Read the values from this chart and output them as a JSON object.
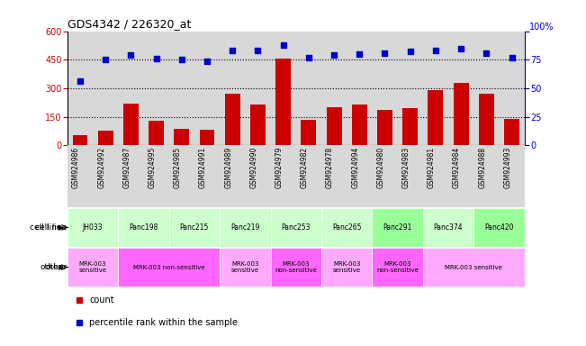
{
  "title": "GDS4342 / 226320_at",
  "gsm_ids": [
    "GSM924986",
    "GSM924992",
    "GSM924987",
    "GSM924995",
    "GSM924985",
    "GSM924991",
    "GSM924989",
    "GSM924990",
    "GSM924979",
    "GSM924982",
    "GSM924978",
    "GSM924994",
    "GSM924980",
    "GSM924983",
    "GSM924981",
    "GSM924984",
    "GSM924988",
    "GSM924993"
  ],
  "counts": [
    55,
    75,
    220,
    130,
    85,
    80,
    270,
    215,
    455,
    135,
    200,
    215,
    185,
    195,
    290,
    330,
    270,
    140
  ],
  "percentile_ranks": [
    56,
    75,
    79,
    76,
    75,
    74,
    83,
    83,
    88,
    77,
    79,
    80,
    81,
    82,
    83,
    85,
    81,
    77
  ],
  "cell_line_groups": [
    {
      "label": "JH033",
      "start": 0,
      "end": 2,
      "color": "#ccffcc"
    },
    {
      "label": "Panc198",
      "start": 2,
      "end": 4,
      "color": "#ccffcc"
    },
    {
      "label": "Panc215",
      "start": 4,
      "end": 6,
      "color": "#ccffcc"
    },
    {
      "label": "Panc219",
      "start": 6,
      "end": 8,
      "color": "#ccffcc"
    },
    {
      "label": "Panc253",
      "start": 8,
      "end": 10,
      "color": "#ccffcc"
    },
    {
      "label": "Panc265",
      "start": 10,
      "end": 12,
      "color": "#ccffcc"
    },
    {
      "label": "Panc291",
      "start": 12,
      "end": 14,
      "color": "#99ff99"
    },
    {
      "label": "Panc374",
      "start": 14,
      "end": 16,
      "color": "#ccffcc"
    },
    {
      "label": "Panc420",
      "start": 16,
      "end": 18,
      "color": "#99ff99"
    }
  ],
  "other_groups": [
    {
      "label": "MRK-003\nsensitive",
      "start": 0,
      "end": 2,
      "color": "#ffaaff"
    },
    {
      "label": "MRK-003 non-sensitive",
      "start": 2,
      "end": 6,
      "color": "#ff66ff"
    },
    {
      "label": "MRK-003\nsensitive",
      "start": 6,
      "end": 8,
      "color": "#ffaaff"
    },
    {
      "label": "MRK-003\nnon-sensitive",
      "start": 8,
      "end": 10,
      "color": "#ff66ff"
    },
    {
      "label": "MRK-003\nsensitive",
      "start": 10,
      "end": 12,
      "color": "#ffaaff"
    },
    {
      "label": "MRK-003\nnon-sensitive",
      "start": 12,
      "end": 14,
      "color": "#ff66ff"
    },
    {
      "label": "MRK-003 sensitive",
      "start": 14,
      "end": 18,
      "color": "#ffaaff"
    }
  ],
  "bar_color": "#cc0000",
  "dot_color": "#0000cc",
  "left_yticks": [
    0,
    150,
    300,
    450,
    600
  ],
  "left_ylim": [
    0,
    600
  ],
  "right_yticks": [
    0,
    25,
    50,
    75,
    100
  ],
  "right_ylim": [
    0,
    100
  ],
  "hline_values": [
    150,
    300,
    450
  ],
  "bg_color": "#d8d8d8",
  "legend_count_color": "#cc0000",
  "legend_pct_color": "#0000cc"
}
